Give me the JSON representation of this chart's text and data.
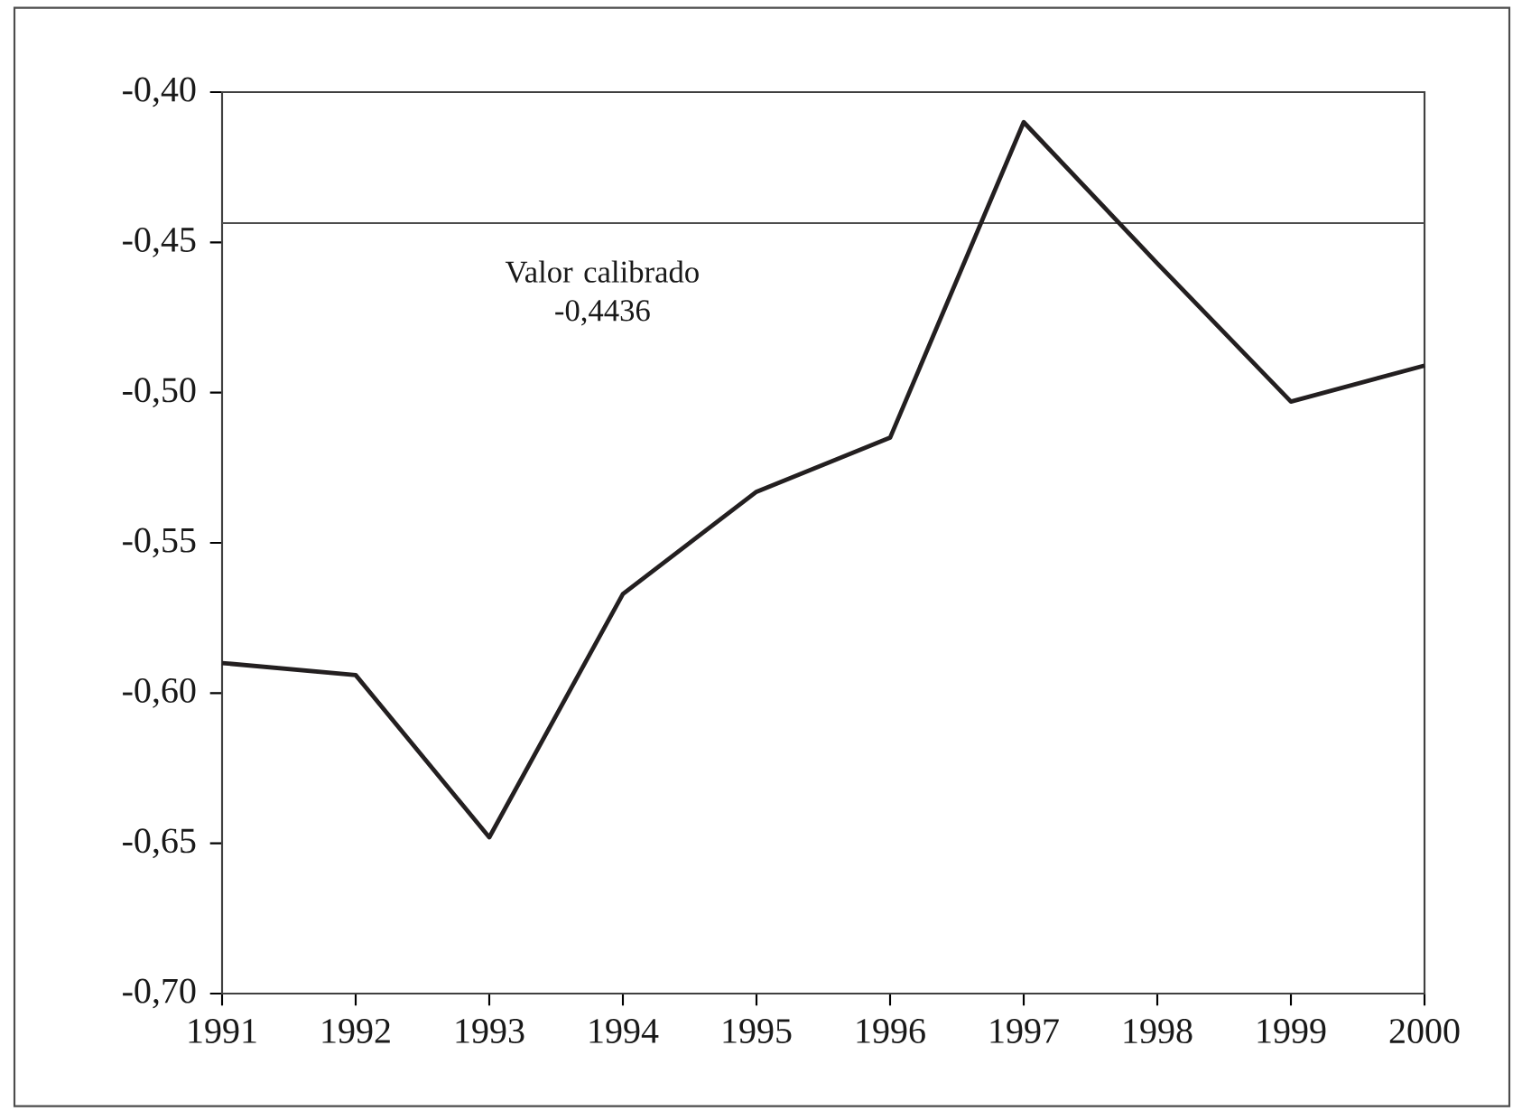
{
  "chart_data": {
    "type": "line",
    "x": [
      1991,
      1992,
      1993,
      1994,
      1995,
      1996,
      1997,
      1998,
      1999,
      2000
    ],
    "values": [
      -0.59,
      -0.594,
      -0.648,
      -0.567,
      -0.533,
      -0.515,
      -0.41,
      -0.457,
      -0.503,
      -0.491
    ],
    "color": "#231f20",
    "line_style": "solid",
    "xlim": [
      1991,
      2000
    ],
    "xticks": [
      1991,
      1992,
      1993,
      1994,
      1995,
      1996,
      1997,
      1998,
      1999,
      2000
    ],
    "ylim": [
      -0.7,
      -0.4
    ],
    "yticks": [
      {
        "value": -0.7,
        "label": "-0,70"
      },
      {
        "value": -0.65,
        "label": "-0,65"
      },
      {
        "value": -0.6,
        "label": "-0,60"
      },
      {
        "value": -0.55,
        "label": "-0,55"
      },
      {
        "value": -0.5,
        "label": "-0,50"
      },
      {
        "value": -0.45,
        "label": "-0,45"
      },
      {
        "value": -0.4,
        "label": "-0,40"
      }
    ],
    "ref_lines": [
      {
        "axis": "y",
        "value": -0.4436,
        "label": "Valor calibrado -0,4436",
        "color": "#4d4d4d"
      }
    ]
  }
}
